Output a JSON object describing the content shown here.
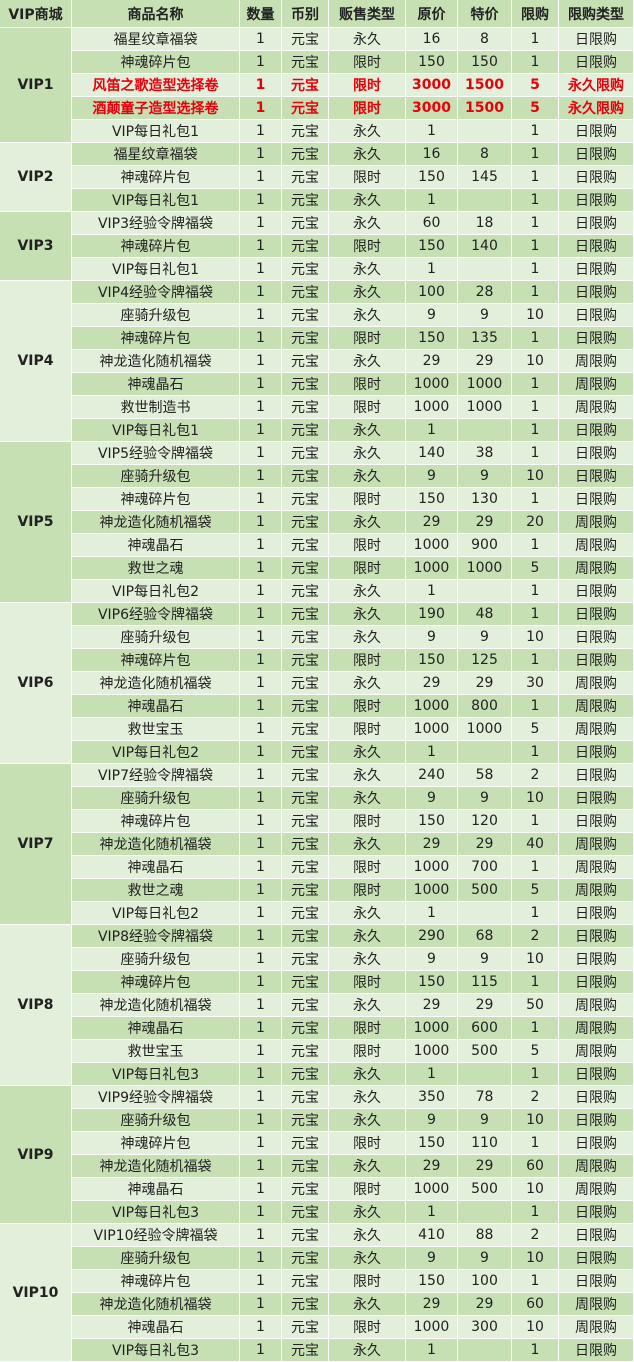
{
  "table": {
    "header": [
      "VIP商城",
      "商品名称",
      "数量",
      "币别",
      "贩售类型",
      "原价",
      "特价",
      "限购",
      "限购类型"
    ],
    "groups": [
      {
        "vip": "VIP1",
        "rows": [
          {
            "cells": [
              "福星纹章福袋",
              1,
              "元宝",
              "永久",
              16,
              8,
              1,
              "日限购"
            ]
          },
          {
            "cells": [
              "神魂碎片包",
              1,
              "元宝",
              "限时",
              150,
              150,
              1,
              "日限购"
            ]
          },
          {
            "cells": [
              "风笛之歌造型选择卷",
              1,
              "元宝",
              "限时",
              3000,
              1500,
              5,
              "永久限购"
            ],
            "color": "#e8000b"
          },
          {
            "cells": [
              "酒颠童子造型选择卷",
              1,
              "元宝",
              "限时",
              3000,
              1500,
              5,
              "永久限购"
            ],
            "color": "#e8000b"
          },
          {
            "cells": [
              "VIP每日礼包1",
              1,
              "元宝",
              "永久",
              1,
              null,
              1,
              "日限购"
            ]
          }
        ]
      },
      {
        "vip": "VIP2",
        "rows": [
          {
            "cells": [
              "福星纹章福袋",
              1,
              "元宝",
              "永久",
              16,
              8,
              1,
              "日限购"
            ]
          },
          {
            "cells": [
              "神魂碎片包",
              1,
              "元宝",
              "限时",
              150,
              145,
              1,
              "日限购"
            ]
          },
          {
            "cells": [
              "VIP每日礼包1",
              1,
              "元宝",
              "永久",
              1,
              null,
              1,
              "日限购"
            ]
          }
        ]
      },
      {
        "vip": "VIP3",
        "rows": [
          {
            "cells": [
              "VIP3经验令牌福袋",
              1,
              "元宝",
              "永久",
              60,
              18,
              1,
              "日限购"
            ]
          },
          {
            "cells": [
              "神魂碎片包",
              1,
              "元宝",
              "限时",
              150,
              140,
              1,
              "日限购"
            ]
          },
          {
            "cells": [
              "VIP每日礼包1",
              1,
              "元宝",
              "永久",
              1,
              null,
              1,
              "日限购"
            ]
          }
        ]
      },
      {
        "vip": "VIP4",
        "rows": [
          {
            "cells": [
              "VIP4经验令牌福袋",
              1,
              "元宝",
              "永久",
              100,
              28,
              1,
              "日限购"
            ]
          },
          {
            "cells": [
              "座骑升级包",
              1,
              "元宝",
              "永久",
              9,
              9,
              10,
              "日限购"
            ]
          },
          {
            "cells": [
              "神魂碎片包",
              1,
              "元宝",
              "限时",
              150,
              135,
              1,
              "日限购"
            ]
          },
          {
            "cells": [
              "神龙造化随机福袋",
              1,
              "元宝",
              "永久",
              29,
              29,
              10,
              "周限购"
            ]
          },
          {
            "cells": [
              "神魂晶石",
              1,
              "元宝",
              "限时",
              1000,
              1000,
              1,
              "周限购"
            ]
          },
          {
            "cells": [
              "救世制造书",
              1,
              "元宝",
              "限时",
              1000,
              1000,
              1,
              "周限购"
            ]
          },
          {
            "cells": [
              "VIP每日礼包1",
              1,
              "元宝",
              "永久",
              1,
              null,
              1,
              "日限购"
            ]
          }
        ]
      },
      {
        "vip": "VIP5",
        "rows": [
          {
            "cells": [
              "VIP5经验令牌福袋",
              1,
              "元宝",
              "永久",
              140,
              38,
              1,
              "日限购"
            ]
          },
          {
            "cells": [
              "座骑升级包",
              1,
              "元宝",
              "永久",
              9,
              9,
              10,
              "日限购"
            ]
          },
          {
            "cells": [
              "神魂碎片包",
              1,
              "元宝",
              "限时",
              150,
              130,
              1,
              "日限购"
            ]
          },
          {
            "cells": [
              "神龙造化随机福袋",
              1,
              "元宝",
              "永久",
              29,
              29,
              20,
              "周限购"
            ]
          },
          {
            "cells": [
              "神魂晶石",
              1,
              "元宝",
              "限时",
              1000,
              900,
              1,
              "周限购"
            ]
          },
          {
            "cells": [
              "救世之魂",
              1,
              "元宝",
              "限时",
              1000,
              1000,
              5,
              "周限购"
            ]
          },
          {
            "cells": [
              "VIP每日礼包2",
              1,
              "元宝",
              "永久",
              1,
              null,
              1,
              "日限购"
            ]
          }
        ]
      },
      {
        "vip": "VIP6",
        "rows": [
          {
            "cells": [
              "VIP6经验令牌福袋",
              1,
              "元宝",
              "永久",
              190,
              48,
              1,
              "日限购"
            ]
          },
          {
            "cells": [
              "座骑升级包",
              1,
              "元宝",
              "永久",
              9,
              9,
              10,
              "日限购"
            ]
          },
          {
            "cells": [
              "神魂碎片包",
              1,
              "元宝",
              "限时",
              150,
              125,
              1,
              "日限购"
            ]
          },
          {
            "cells": [
              "神龙造化随机福袋",
              1,
              "元宝",
              "永久",
              29,
              29,
              30,
              "周限购"
            ]
          },
          {
            "cells": [
              "神魂晶石",
              1,
              "元宝",
              "限时",
              1000,
              800,
              1,
              "周限购"
            ]
          },
          {
            "cells": [
              "救世宝玉",
              1,
              "元宝",
              "限时",
              1000,
              1000,
              5,
              "周限购"
            ]
          },
          {
            "cells": [
              "VIP每日礼包2",
              1,
              "元宝",
              "永久",
              1,
              null,
              1,
              "日限购"
            ]
          }
        ]
      },
      {
        "vip": "VIP7",
        "rows": [
          {
            "cells": [
              "VIP7经验令牌福袋",
              1,
              "元宝",
              "永久",
              240,
              58,
              2,
              "日限购"
            ]
          },
          {
            "cells": [
              "座骑升级包",
              1,
              "元宝",
              "永久",
              9,
              9,
              10,
              "日限购"
            ]
          },
          {
            "cells": [
              "神魂碎片包",
              1,
              "元宝",
              "限时",
              150,
              120,
              1,
              "日限购"
            ]
          },
          {
            "cells": [
              "神龙造化随机福袋",
              1,
              "元宝",
              "永久",
              29,
              29,
              40,
              "周限购"
            ]
          },
          {
            "cells": [
              "神魂晶石",
              1,
              "元宝",
              "限时",
              1000,
              700,
              1,
              "周限购"
            ]
          },
          {
            "cells": [
              "救世之魂",
              1,
              "元宝",
              "限时",
              1000,
              500,
              5,
              "周限购"
            ]
          },
          {
            "cells": [
              "VIP每日礼包2",
              1,
              "元宝",
              "永久",
              1,
              null,
              1,
              "日限购"
            ]
          }
        ]
      },
      {
        "vip": "VIP8",
        "rows": [
          {
            "cells": [
              "VIP8经验令牌福袋",
              1,
              "元宝",
              "永久",
              290,
              68,
              2,
              "日限购"
            ]
          },
          {
            "cells": [
              "座骑升级包",
              1,
              "元宝",
              "永久",
              9,
              9,
              10,
              "日限购"
            ]
          },
          {
            "cells": [
              "神魂碎片包",
              1,
              "元宝",
              "限时",
              150,
              115,
              1,
              "日限购"
            ]
          },
          {
            "cells": [
              "神龙造化随机福袋",
              1,
              "元宝",
              "永久",
              29,
              29,
              50,
              "周限购"
            ]
          },
          {
            "cells": [
              "神魂晶石",
              1,
              "元宝",
              "限时",
              1000,
              600,
              1,
              "周限购"
            ]
          },
          {
            "cells": [
              "救世宝玉",
              1,
              "元宝",
              "限时",
              1000,
              500,
              5,
              "周限购"
            ]
          },
          {
            "cells": [
              "VIP每日礼包3",
              1,
              "元宝",
              "永久",
              1,
              null,
              1,
              "日限购"
            ]
          }
        ]
      },
      {
        "vip": "VIP9",
        "rows": [
          {
            "cells": [
              "VIP9经验令牌福袋",
              1,
              "元宝",
              "永久",
              350,
              78,
              2,
              "日限购"
            ]
          },
          {
            "cells": [
              "座骑升级包",
              1,
              "元宝",
              "永久",
              9,
              9,
              10,
              "日限购"
            ]
          },
          {
            "cells": [
              "神魂碎片包",
              1,
              "元宝",
              "限时",
              150,
              110,
              1,
              "日限购"
            ]
          },
          {
            "cells": [
              "神龙造化随机福袋",
              1,
              "元宝",
              "永久",
              29,
              29,
              60,
              "周限购"
            ]
          },
          {
            "cells": [
              "神魂晶石",
              1,
              "元宝",
              "限时",
              1000,
              500,
              10,
              "周限购"
            ]
          },
          {
            "cells": [
              "VIP每日礼包3",
              1,
              "元宝",
              "永久",
              1,
              null,
              1,
              "日限购"
            ]
          }
        ]
      },
      {
        "vip": "VIP10",
        "rows": [
          {
            "cells": [
              "VIP10经验令牌福袋",
              1,
              "元宝",
              "永久",
              410,
              88,
              2,
              "日限购"
            ]
          },
          {
            "cells": [
              "座骑升级包",
              1,
              "元宝",
              "永久",
              9,
              9,
              10,
              "日限购"
            ]
          },
          {
            "cells": [
              "神魂碎片包",
              1,
              "元宝",
              "限时",
              150,
              100,
              1,
              "日限购"
            ]
          },
          {
            "cells": [
              "神龙造化随机福袋",
              1,
              "元宝",
              "永久",
              29,
              29,
              60,
              "周限购"
            ]
          },
          {
            "cells": [
              "神魂晶石",
              1,
              "元宝",
              "限时",
              1000,
              300,
              10,
              "周限购"
            ]
          },
          {
            "cells": [
              "VIP每日礼包3",
              1,
              "元宝",
              "永久",
              1,
              null,
              1,
              "日限购"
            ]
          }
        ]
      }
    ]
  }
}
